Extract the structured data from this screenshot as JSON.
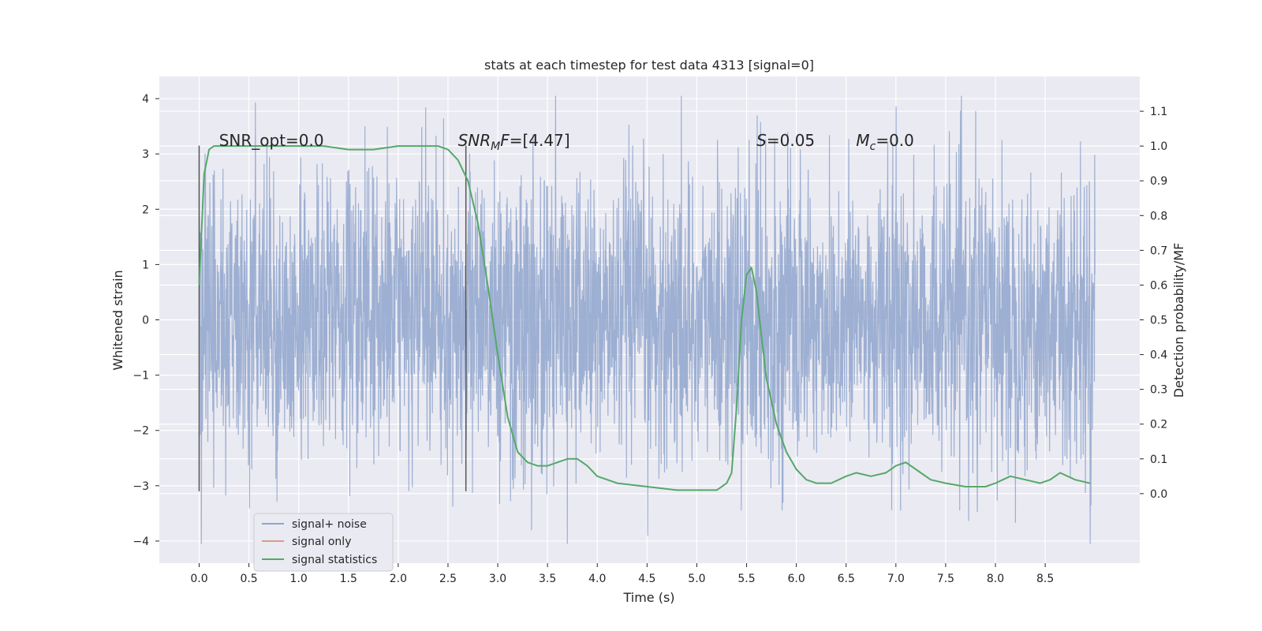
{
  "chart_data": {
    "type": "line",
    "title": "stats at each timestep for test data 4313 [signal=0]",
    "xlabel": "Time (s)",
    "ylabel": "Whitened strain",
    "ylabel_right": "Detection probability/MF",
    "xlim": [
      -0.4,
      9.45
    ],
    "ylim": [
      -4.4,
      4.4
    ],
    "ylim_right": [
      -0.2,
      1.2
    ],
    "x_ticks": [
      0.0,
      0.5,
      1.0,
      1.5,
      2.0,
      2.5,
      3.0,
      3.5,
      4.0,
      4.5,
      5.0,
      5.5,
      6.0,
      6.5,
      7.0,
      7.5,
      8.0,
      8.5
    ],
    "x_tick_labels": [
      "0.0",
      "0.5",
      "1.0",
      "1.5",
      "2.0",
      "2.5",
      "3.0",
      "3.5",
      "4.0",
      "4.5",
      "5.0",
      "5.5",
      "6.0",
      "6.5",
      "7.0",
      "7.5",
      "8.0",
      "8.5"
    ],
    "y_ticks": [
      4,
      3,
      2,
      1,
      0,
      -1,
      -2,
      -3,
      -4
    ],
    "y_tick_labels": [
      "4",
      "3",
      "2",
      "1",
      "0",
      "−1",
      "−2",
      "−3",
      "−4"
    ],
    "y_right_ticks": [
      1.1,
      1.0,
      0.9,
      0.8,
      0.7,
      0.6,
      0.5,
      0.4,
      0.3,
      0.2,
      0.1,
      0.0
    ],
    "y_right_tick_labels": [
      "1.1",
      "1.0",
      "0.9",
      "0.8",
      "0.7",
      "0.6",
      "0.5",
      "0.4",
      "0.3",
      "0.2",
      "0.1",
      "0.0"
    ],
    "grid": true,
    "legend_position": "lower-left",
    "series": [
      {
        "name": "signal+ noise",
        "color": "#8fa4cc",
        "axis": "left",
        "kind": "noise",
        "x_range": [
          0.0,
          9.0
        ],
        "typical_amplitude": 1.3
      },
      {
        "name": "signal only",
        "color": "#dd9c86",
        "axis": "left",
        "kind": "line",
        "x": [],
        "y": []
      },
      {
        "name": "signal statistics",
        "color": "#55a868",
        "axis": "right",
        "kind": "line",
        "x": [
          0.0,
          0.05,
          0.1,
          0.15,
          0.2,
          0.3,
          0.5,
          0.75,
          1.0,
          1.25,
          1.5,
          1.75,
          2.0,
          2.25,
          2.4,
          2.5,
          2.6,
          2.7,
          2.8,
          2.9,
          3.0,
          3.1,
          3.2,
          3.3,
          3.4,
          3.5,
          3.6,
          3.7,
          3.8,
          3.9,
          4.0,
          4.2,
          4.5,
          4.8,
          5.0,
          5.1,
          5.2,
          5.3,
          5.35,
          5.4,
          5.45,
          5.5,
          5.55,
          5.6,
          5.65,
          5.7,
          5.8,
          5.9,
          6.0,
          6.1,
          6.2,
          6.35,
          6.5,
          6.6,
          6.75,
          6.9,
          7.0,
          7.1,
          7.2,
          7.35,
          7.5,
          7.7,
          7.9,
          8.0,
          8.15,
          8.3,
          8.45,
          8.55,
          8.65,
          8.8,
          8.95
        ],
        "y": [
          0.6,
          0.92,
          0.99,
          1.0,
          1.0,
          1.0,
          1.0,
          1.0,
          1.0,
          1.0,
          0.99,
          0.99,
          1.0,
          1.0,
          1.0,
          0.99,
          0.96,
          0.9,
          0.78,
          0.6,
          0.4,
          0.22,
          0.12,
          0.09,
          0.08,
          0.08,
          0.09,
          0.1,
          0.1,
          0.08,
          0.05,
          0.03,
          0.02,
          0.01,
          0.01,
          0.01,
          0.01,
          0.03,
          0.06,
          0.25,
          0.5,
          0.63,
          0.65,
          0.58,
          0.45,
          0.33,
          0.2,
          0.12,
          0.07,
          0.04,
          0.03,
          0.03,
          0.05,
          0.06,
          0.05,
          0.06,
          0.08,
          0.09,
          0.07,
          0.04,
          0.03,
          0.02,
          0.02,
          0.03,
          0.05,
          0.04,
          0.03,
          0.04,
          0.06,
          0.04,
          0.03
        ]
      }
    ],
    "vertical_markers": [
      {
        "x": 0.0,
        "y_range": [
          -3.1,
          3.15
        ],
        "color": "#555555"
      },
      {
        "x": 2.68,
        "y_range": [
          -3.1,
          3.15
        ],
        "color": "#555555"
      }
    ],
    "annotations": [
      {
        "text": "SNR_opt=0.0",
        "x": 0.2,
        "y": 3.2,
        "italic_prefix": ""
      },
      {
        "text": "SNR_MF=[4.47]",
        "x": 2.6,
        "y": 3.2,
        "italic_prefix": "SNR"
      },
      {
        "text": "S=0.05",
        "x": 5.6,
        "y": 3.2,
        "italic_prefix": "S"
      },
      {
        "text": "M_c=0.0",
        "x": 6.6,
        "y": 3.2,
        "italic_prefix": "M"
      }
    ],
    "annotation_parts": {
      "snr_opt": "SNR_opt=0.0",
      "snr_mf_main": "SNR",
      "snr_mf_sub": "M",
      "snr_mf_tail_italic": "F",
      "snr_mf_rest": "=[4.47]",
      "s_main": "S",
      "s_rest": "=0.05",
      "mc_main": "M",
      "mc_sub": "c",
      "mc_rest": "=0.0"
    }
  }
}
